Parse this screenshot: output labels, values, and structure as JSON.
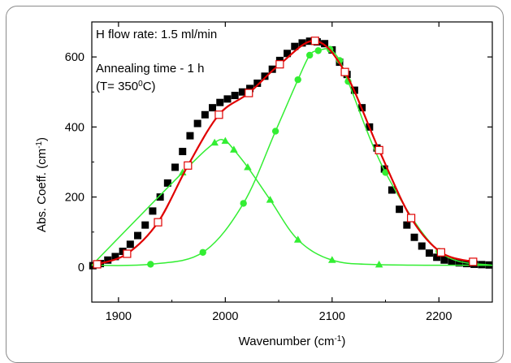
{
  "chart_data": {
    "type": "scatter",
    "xlabel": "Wavenumber (cm",
    "xlabel_sup": "-1",
    "xlabel_tail": ")",
    "ylabel": "Abs. Coeff. (cm",
    "ylabel_sup": "-1",
    "ylabel_tail": ")",
    "xlim": [
      1875,
      2250
    ],
    "ylim": [
      -100,
      700
    ],
    "x_ticks": [
      1900,
      2000,
      2100,
      2200
    ],
    "y_ticks": [
      0,
      200,
      400,
      600
    ],
    "grid": false,
    "annotations": {
      "line1": "H flow rate: 1.5 ml/min",
      "line2": "Annealing time - 1 h",
      "line3_pre": "(T= 350",
      "line3_sup": "0",
      "line3_post": "C)"
    },
    "colors": {
      "measured": "#000000",
      "fit": "#e00000",
      "fit_markers": "#e00000",
      "components": "#33ee33"
    },
    "series": [
      {
        "marker": "filled-square",
        "x": [
          1876,
          1883,
          1890,
          1897,
          1904,
          1911,
          1918,
          1925,
          1932,
          1939,
          1946,
          1953,
          1960,
          1967,
          1974,
          1981,
          1988,
          1995,
          2002,
          2009,
          2016,
          2023,
          2030,
          2037,
          2044,
          2051,
          2058,
          2065,
          2072,
          2079,
          2086,
          2093,
          2100,
          2107,
          2114,
          2121,
          2128,
          2135,
          2142,
          2149,
          2156,
          2163,
          2170,
          2177,
          2184,
          2191,
          2198,
          2205,
          2212,
          2219,
          2226,
          2233,
          2240,
          2247
        ],
        "y": [
          4,
          10,
          20,
          30,
          45,
          65,
          90,
          120,
          160,
          200,
          240,
          285,
          330,
          375,
          410,
          435,
          455,
          470,
          480,
          490,
          500,
          510,
          525,
          545,
          565,
          590,
          610,
          630,
          640,
          645,
          643,
          638,
          620,
          585,
          550,
          505,
          455,
          400,
          340,
          280,
          220,
          165,
          120,
          85,
          60,
          40,
          28,
          20,
          15,
          12,
          10,
          8,
          7,
          6
        ]
      },
      {
        "marker": "line+open-square",
        "x": [
          1880,
          1908,
          1937,
          1965,
          1994,
          2022,
          2051,
          2084,
          2112,
          2144,
          2174,
          2202,
          2232
        ],
        "y": [
          8,
          38,
          128,
          290,
          435,
          497,
          579,
          646,
          557,
          334,
          140,
          42,
          15
        ]
      },
      {
        "marker": "line+circle",
        "x": [
          1875,
          1930,
          1979,
          2017,
          2047,
          2068,
          2079,
          2087,
          2098,
          2107,
          2115,
          2150,
          2200,
          2250
        ],
        "y": [
          5,
          8,
          42,
          182,
          388,
          535,
          605,
          618,
          622,
          590,
          530,
          270,
          45,
          5
        ]
      },
      {
        "marker": "line+triangle",
        "x": [
          1875,
          1960,
          1990,
          2000,
          2008,
          2021,
          2042,
          2068,
          2100,
          2144,
          2250
        ],
        "y": [
          5,
          270,
          355,
          360,
          335,
          285,
          192,
          78,
          20,
          7,
          5
        ]
      }
    ]
  }
}
